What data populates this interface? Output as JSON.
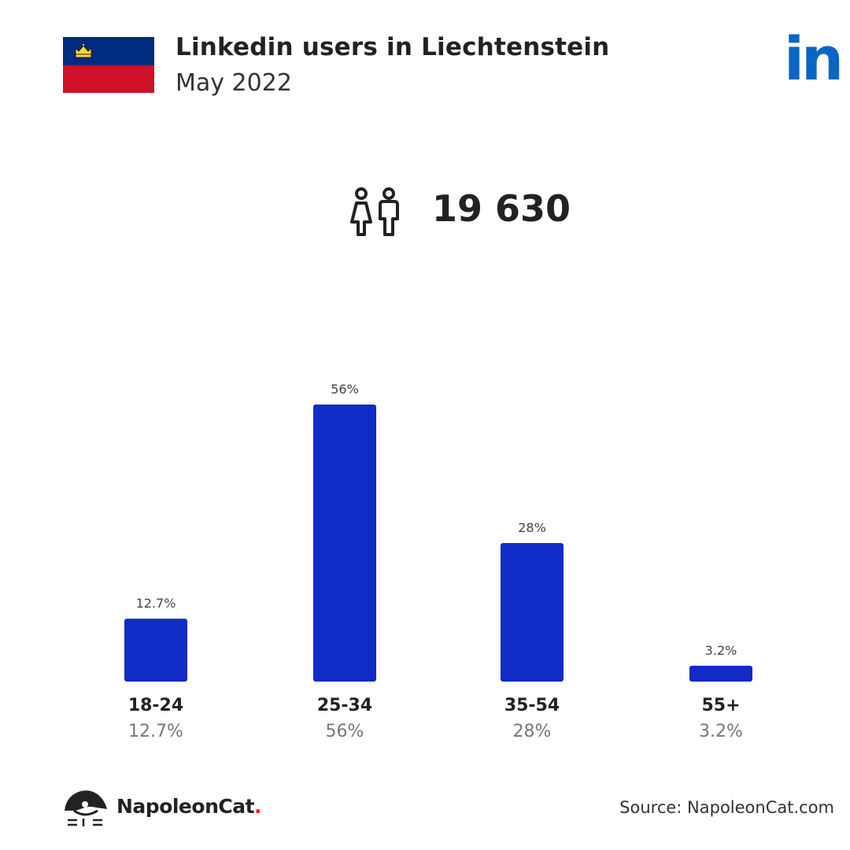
{
  "header": {
    "title": "Linkedin users in Liechtenstein",
    "subtitle": "May 2022",
    "flag_icon": "liechtenstein-flag-icon",
    "brand_icon": "linkedin-logo-icon",
    "brand_text": "in"
  },
  "total": {
    "icon": "users-icon",
    "value": "19 630"
  },
  "chart_data": {
    "type": "bar",
    "categories": [
      "18-24",
      "25-34",
      "35-54",
      "55+"
    ],
    "values": [
      12.7,
      56,
      28,
      3.2
    ],
    "data_labels": [
      "12.7%",
      "56%",
      "28%",
      "3.2%"
    ],
    "title": "",
    "xlabel": "",
    "ylabel": "",
    "ylim": [
      0,
      56
    ],
    "grid": false,
    "colors": {
      "bar": "#102bc6"
    }
  },
  "footer": {
    "logo_icon": "napoleoncat-logo-icon",
    "logo_text": "NapoleonCat",
    "logo_dot": ".",
    "source": "Source: NapoleonCat.com"
  },
  "colors": {
    "accent": "#102bc6",
    "linkedin": "#0a66c2",
    "flag_blue": "#002b7f",
    "flag_red": "#ce1126",
    "flag_crown": "#ffd83d"
  }
}
